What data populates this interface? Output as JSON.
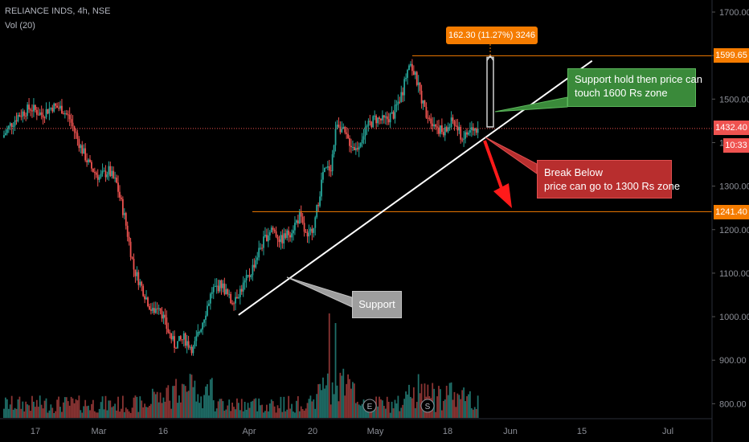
{
  "header": {
    "symbol_line": "RELIANCE INDS, 4h, NSE",
    "volume_line": "Vol (20)"
  },
  "colors": {
    "up": "#26a69a",
    "down": "#ef5350",
    "up_vol": "#1f6e68",
    "down_vol": "#8a3433",
    "level": "#f57c00",
    "price_line": "#ef5350"
  },
  "price_tags": {
    "high_level": "1599.65",
    "current": "1432.40",
    "countdown": "10:33",
    "low_level": "1241.40"
  },
  "measure": {
    "label": "162.30 (11.27%) 3246"
  },
  "annotations": {
    "support_hold": [
      "Support hold then price can",
      "touch 1600 Rs zone"
    ],
    "break_below": [
      "Break Below",
      "price can go to 1300 Rs zone"
    ],
    "support": "Support"
  },
  "event_markers": [
    "E",
    "S"
  ],
  "chart_data": {
    "type": "candlestick",
    "symbol": "RELIANCE INDS",
    "timeframe": "4h",
    "exchange": "NSE",
    "y_ticks": [
      1700,
      1600,
      1500,
      1400,
      1300,
      1200,
      1100,
      1000,
      900,
      800
    ],
    "y_tick_labels": [
      "1700.00",
      "1600.00",
      "1500.00",
      "1400.00",
      "1300.00",
      "1200.00",
      "1100.00",
      "1000.00",
      "900.00",
      "800.00"
    ],
    "ylim": [
      770,
      1720
    ],
    "x_tick_labels": [
      "17",
      "Mar",
      "16",
      "Apr",
      "20",
      "May",
      "18",
      "Jun",
      "15",
      "Jul"
    ],
    "horizontal_levels": [
      1599.65,
      1241.4
    ],
    "current_price": 1432.4,
    "anchors": [
      {
        "t": 0,
        "p": 1412
      },
      {
        "t": 5,
        "p": 1440
      },
      {
        "t": 10,
        "p": 1462
      },
      {
        "t": 18,
        "p": 1480
      },
      {
        "t": 25,
        "p": 1465
      },
      {
        "t": 32,
        "p": 1483
      },
      {
        "t": 38,
        "p": 1478
      },
      {
        "t": 43,
        "p": 1455
      },
      {
        "t": 50,
        "p": 1390
      },
      {
        "t": 56,
        "p": 1345
      },
      {
        "t": 62,
        "p": 1320
      },
      {
        "t": 68,
        "p": 1335
      },
      {
        "t": 73,
        "p": 1305
      },
      {
        "t": 78,
        "p": 1230
      },
      {
        "t": 84,
        "p": 1110
      },
      {
        "t": 90,
        "p": 1060
      },
      {
        "t": 96,
        "p": 1010
      },
      {
        "t": 100,
        "p": 1030
      },
      {
        "t": 105,
        "p": 975
      },
      {
        "t": 110,
        "p": 935
      },
      {
        "t": 116,
        "p": 950
      },
      {
        "t": 122,
        "p": 925
      },
      {
        "t": 128,
        "p": 990
      },
      {
        "t": 134,
        "p": 1060
      },
      {
        "t": 140,
        "p": 1075
      },
      {
        "t": 146,
        "p": 1035
      },
      {
        "t": 152,
        "p": 1060
      },
      {
        "t": 158,
        "p": 1095
      },
      {
        "t": 165,
        "p": 1160
      },
      {
        "t": 172,
        "p": 1205
      },
      {
        "t": 178,
        "p": 1175
      },
      {
        "t": 184,
        "p": 1195
      },
      {
        "t": 190,
        "p": 1230
      },
      {
        "t": 195,
        "p": 1175
      },
      {
        "t": 200,
        "p": 1225
      },
      {
        "t": 205,
        "p": 1330
      },
      {
        "t": 210,
        "p": 1345
      },
      {
        "t": 214,
        "p": 1450
      },
      {
        "t": 220,
        "p": 1410
      },
      {
        "t": 226,
        "p": 1385
      },
      {
        "t": 232,
        "p": 1430
      },
      {
        "t": 238,
        "p": 1455
      },
      {
        "t": 244,
        "p": 1450
      },
      {
        "t": 250,
        "p": 1465
      },
      {
        "t": 256,
        "p": 1520
      },
      {
        "t": 260,
        "p": 1590
      },
      {
        "t": 265,
        "p": 1540
      },
      {
        "t": 270,
        "p": 1475
      },
      {
        "t": 276,
        "p": 1445
      },
      {
        "t": 282,
        "p": 1420
      },
      {
        "t": 288,
        "p": 1450
      },
      {
        "t": 294,
        "p": 1410
      },
      {
        "t": 300,
        "p": 1430
      },
      {
        "t": 304,
        "p": 1432
      }
    ],
    "trendline": {
      "from": {
        "t": 151,
        "p": 1004
      },
      "to": {
        "t": 377,
        "p": 1588
      }
    },
    "support_line_t": [
      188,
      312
    ],
    "projection_t": [
      312,
      336
    ]
  }
}
